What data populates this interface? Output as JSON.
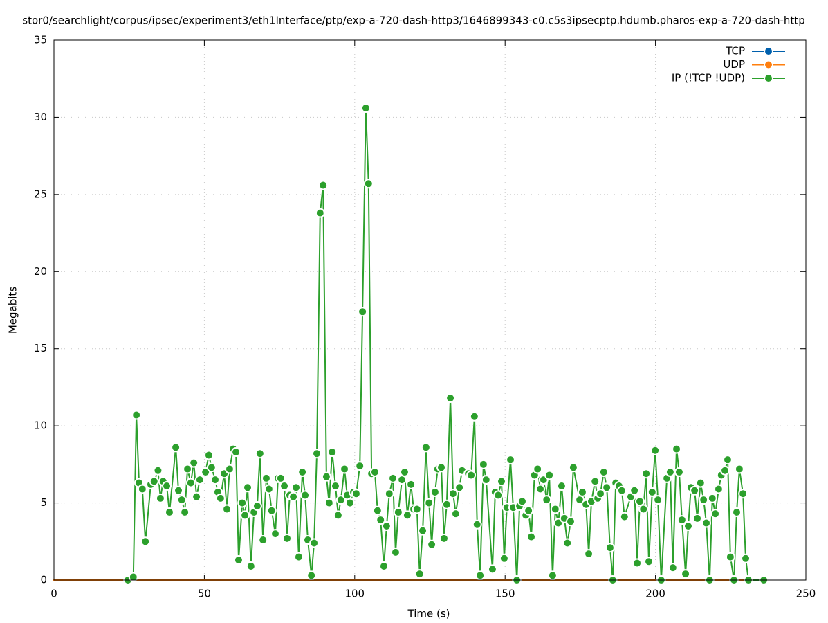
{
  "chart_data": {
    "type": "line",
    "title": "stor0/searchlight/corpus/ipsec/experiment3/eth1Interface/ptp/exp-a-720-dash-http3/1646899343-c0.c5s3ipsecptp.hdumb.pharos-exp-a-720-dash-http",
    "x_label": "Time (s)",
    "y_label": "Megabits",
    "xlim": [
      0,
      250
    ],
    "xticks": [
      0,
      50,
      100,
      150,
      200,
      250
    ],
    "ylim": [
      0,
      35
    ],
    "yticks": [
      0,
      5,
      10,
      15,
      20,
      25,
      30,
      35
    ],
    "grid": true,
    "legend": "top-right",
    "series": [
      {
        "name": "TCP",
        "color": "#0060ad",
        "x": [
          0,
          5,
          10,
          15,
          20,
          25,
          30,
          35,
          40,
          45,
          50,
          55,
          60,
          65,
          70,
          75,
          80,
          85,
          90,
          95,
          100,
          105,
          110,
          115,
          120,
          125,
          130,
          135,
          140,
          145,
          150,
          155,
          160,
          165,
          170,
          175,
          180,
          185,
          190,
          195,
          200,
          205,
          210,
          215,
          220,
          225,
          230
        ],
        "values": [
          0,
          0,
          0,
          0,
          0,
          0,
          0,
          0,
          0,
          0,
          0,
          0,
          0,
          0,
          0,
          0,
          0,
          0,
          0,
          0,
          0,
          0,
          0,
          0,
          0,
          0,
          0,
          0,
          0,
          0,
          0,
          0,
          0,
          0,
          0,
          0,
          0,
          0,
          0,
          0,
          0,
          0,
          0,
          0,
          0,
          0,
          0
        ]
      },
      {
        "name": "UDP",
        "color": "#ff7f0e",
        "x": [
          0,
          5,
          10,
          15,
          20,
          25,
          30,
          35,
          40,
          45,
          50,
          55,
          60,
          65,
          70,
          75,
          80,
          85,
          90,
          95,
          100,
          105,
          110,
          115,
          120,
          125,
          130,
          135,
          140,
          145,
          150,
          155,
          160,
          165,
          170,
          175,
          180,
          185,
          190,
          195,
          200,
          205,
          210,
          215,
          220,
          225,
          230
        ],
        "values": [
          0,
          0,
          0,
          0,
          0,
          0,
          0,
          0,
          0,
          0,
          0,
          0,
          0,
          0,
          0,
          0,
          0,
          0,
          0,
          0,
          0,
          0,
          0,
          0,
          0,
          0,
          0,
          0,
          0,
          0,
          0,
          0,
          0,
          0,
          0,
          0,
          0,
          0,
          0,
          0,
          0,
          0,
          0,
          0,
          0,
          0,
          0
        ]
      },
      {
        "name": "IP (!TCP  !UDP)",
        "color": "#2ca02c",
        "x": [
          24.6,
          26.4,
          27.4,
          28.3,
          29.4,
          30.4,
          32.2,
          33.3,
          34.6,
          35.4,
          36.3,
          37.5,
          38.4,
          40.5,
          41.4,
          42.5,
          43.5,
          44.4,
          45.5,
          46.5,
          47.4,
          48.5,
          50.4,
          51.5,
          52.4,
          53.6,
          54.5,
          55.4,
          56.6,
          57.5,
          58.4,
          59.6,
          60.5,
          61.4,
          62.6,
          63.5,
          64.4,
          65.5,
          66.5,
          67.6,
          68.5,
          69.5,
          70.6,
          71.5,
          72.4,
          73.6,
          74.5,
          75.4,
          76.6,
          77.5,
          78.4,
          79.6,
          80.5,
          81.4,
          82.6,
          83.5,
          84.4,
          85.6,
          86.5,
          87.4,
          88.5,
          89.5,
          90.6,
          91.5,
          92.5,
          93.6,
          94.5,
          95.4,
          96.6,
          97.5,
          98.4,
          99.6,
          100.5,
          101.7,
          102.6,
          103.7,
          104.6,
          105.6,
          106.7,
          107.6,
          108.6,
          109.7,
          110.6,
          111.5,
          112.7,
          113.6,
          114.5,
          115.7,
          116.6,
          117.5,
          118.7,
          119.6,
          120.7,
          121.6,
          122.6,
          123.7,
          124.7,
          125.6,
          126.7,
          127.6,
          128.8,
          129.7,
          130.6,
          131.8,
          132.7,
          133.6,
          134.8,
          135.7,
          137.8,
          138.7,
          139.8,
          140.7,
          141.7,
          142.8,
          143.7,
          145.8,
          146.7,
          147.7,
          148.8,
          149.7,
          150.6,
          151.8,
          152.7,
          153.9,
          154.8,
          155.7,
          156.9,
          157.8,
          158.7,
          159.8,
          160.8,
          161.7,
          162.8,
          163.8,
          164.7,
          165.8,
          166.7,
          167.7,
          168.8,
          169.7,
          170.7,
          171.8,
          172.7,
          174.8,
          175.7,
          176.9,
          177.8,
          178.7,
          179.9,
          180.8,
          181.7,
          182.8,
          183.8,
          184.9,
          185.8,
          186.8,
          187.9,
          188.8,
          189.7,
          191.8,
          193.0,
          193.9,
          194.8,
          196.0,
          196.9,
          197.8,
          198.9,
          199.9,
          200.8,
          201.9,
          203.8,
          204.9,
          205.8,
          207.0,
          207.9,
          208.8,
          210.0,
          210.9,
          211.8,
          213.0,
          213.9,
          215.0,
          216.0,
          216.9,
          218.0,
          218.9,
          219.9,
          221.0,
          221.9,
          223.1,
          224.0,
          224.9,
          226.1,
          227.0,
          227.9,
          229.1,
          230.0,
          230.9,
          236.0
        ],
        "values": [
          0,
          0.2,
          10.7,
          6.3,
          5.9,
          2.5,
          6.2,
          6.4,
          7.1,
          5.3,
          6.4,
          6.1,
          4.4,
          8.6,
          5.8,
          5.2,
          4.4,
          7.2,
          6.3,
          7.6,
          5.4,
          6.5,
          7.0,
          8.1,
          7.3,
          6.5,
          5.7,
          5.3,
          6.9,
          4.6,
          7.2,
          8.5,
          8.3,
          1.3,
          5.0,
          4.2,
          6.0,
          0.9,
          4.4,
          4.8,
          8.2,
          2.6,
          6.6,
          5.9,
          4.5,
          3.0,
          6.6,
          6.6,
          6.1,
          2.7,
          5.5,
          5.4,
          6.0,
          1.5,
          7.0,
          5.5,
          2.6,
          0.3,
          2.4,
          8.2,
          23.8,
          25.6,
          6.7,
          5.0,
          8.3,
          6.1,
          4.2,
          5.2,
          7.2,
          5.5,
          5.0,
          5.7,
          5.6,
          7.4,
          17.4,
          30.6,
          25.7,
          6.9,
          7.0,
          4.5,
          3.9,
          0.9,
          3.5,
          5.6,
          6.6,
          1.8,
          4.4,
          6.5,
          7.0,
          4.2,
          6.2,
          4.6,
          4.6,
          0.4,
          3.2,
          8.6,
          5.0,
          2.3,
          5.7,
          7.2,
          7.3,
          2.7,
          4.9,
          11.8,
          5.6,
          4.3,
          6.0,
          7.1,
          6.9,
          6.8,
          10.6,
          3.6,
          0.3,
          7.5,
          6.5,
          0.7,
          5.7,
          5.5,
          6.4,
          1.4,
          4.7,
          7.8,
          4.7,
          0,
          4.8,
          5.1,
          4.2,
          4.5,
          2.8,
          6.8,
          7.2,
          5.9,
          6.5,
          5.2,
          6.8,
          0.3,
          4.6,
          3.7,
          6.1,
          4.0,
          2.4,
          3.8,
          7.3,
          5.2,
          5.7,
          4.9,
          1.7,
          5.1,
          6.4,
          5.3,
          5.6,
          7.0,
          6.0,
          2.1,
          0,
          6.3,
          6.1,
          5.8,
          4.1,
          5.4,
          5.8,
          1.1,
          5.1,
          4.6,
          6.9,
          1.2,
          5.7,
          8.4,
          5.2,
          0,
          6.6,
          7.0,
          0.8,
          8.5,
          7.0,
          3.9,
          0.4,
          3.5,
          6.0,
          5.8,
          4.0,
          6.3,
          5.2,
          3.7,
          0,
          5.3,
          4.3,
          5.9,
          6.8,
          7.1,
          7.8,
          1.5,
          0,
          4.4,
          7.2,
          5.6,
          1.4,
          0,
          0
        ]
      }
    ]
  }
}
